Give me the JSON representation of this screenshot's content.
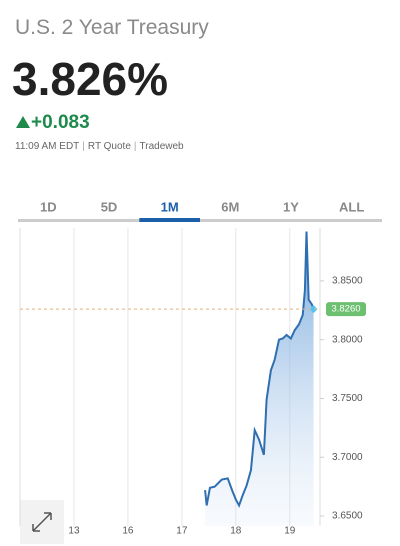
{
  "header": {
    "title": "U.S. 2 Year Treasury",
    "price": "3.826%",
    "change": "+0.083",
    "meta": [
      "11:09 AM EDT",
      "RT Quote",
      "Tradeweb"
    ]
  },
  "tabs": {
    "items": [
      "1D",
      "5D",
      "1M",
      "6M",
      "1Y",
      "ALL"
    ],
    "selected": 2
  },
  "chart_data": {
    "type": "line",
    "x": [
      17.43,
      17.46,
      17.52,
      17.61,
      17.74,
      17.85,
      17.93,
      18.0,
      18.06,
      18.13,
      18.2,
      18.28,
      18.35,
      18.43,
      18.52,
      18.57,
      18.65,
      18.72,
      18.8,
      18.87,
      18.94,
      19.02,
      19.09,
      19.17,
      19.24,
      19.28,
      19.31,
      19.35,
      19.41,
      19.44
    ],
    "series": [
      {
        "color": "#2f6fb0",
        "values": [
          3.672,
          3.659,
          3.674,
          3.675,
          3.681,
          3.682,
          3.672,
          3.664,
          3.659,
          3.668,
          3.676,
          3.689,
          3.723,
          3.715,
          3.702,
          3.749,
          3.774,
          3.783,
          3.8,
          3.801,
          3.804,
          3.801,
          3.808,
          3.813,
          3.821,
          3.842,
          3.892,
          3.834,
          3.83,
          3.826
        ]
      }
    ],
    "current": {
      "value": 3.826,
      "label": "3.8260"
    },
    "xlim": [
      12,
      19.56
    ],
    "xticks": [
      13,
      16,
      17,
      18,
      19
    ],
    "ylim": [
      3.6415,
      3.895
    ],
    "yticks": [
      {
        "value": 3.65,
        "label": "3.6500"
      },
      {
        "value": 3.7,
        "label": "3.7000"
      },
      {
        "value": 3.75,
        "label": "3.7500"
      },
      {
        "value": 3.8,
        "label": "3.8000"
      },
      {
        "value": 3.85,
        "label": "3.8500"
      }
    ],
    "grid": "x"
  }
}
